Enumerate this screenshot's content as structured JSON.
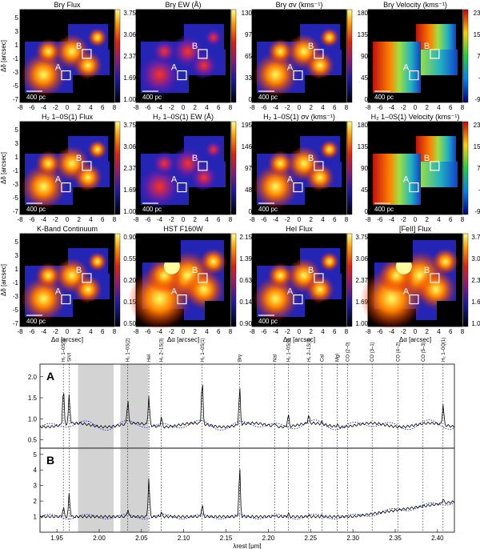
{
  "panels": [
    {
      "title": "Brγ Flux",
      "cmap": "heat",
      "cbar": [
        "3.75",
        "3.06",
        "2.37",
        "1.69",
        "1.00"
      ],
      "scale": "400 pc"
    },
    {
      "title": "Brγ EW (Å)",
      "cmap": "heat",
      "cbar": [
        "130",
        "97",
        "65",
        "33",
        "0"
      ],
      "scale": "400 pc"
    },
    {
      "title": "Brγ σv (kms⁻¹)",
      "cmap": "heat",
      "cbar": [
        "180",
        "135",
        "90",
        "45",
        "0"
      ],
      "scale": "400 pc"
    },
    {
      "title": "Brγ Velocity (kms⁻¹)",
      "cmap": "vel",
      "cbar": [
        "230",
        "150",
        "70",
        "-9",
        "-90"
      ],
      "scale": "400 pc"
    },
    {
      "title": "H₂ 1–0S(1) Flux",
      "cmap": "heat",
      "cbar": [
        "3.75",
        "3.06",
        "2.37",
        "1.69",
        "1.00"
      ],
      "scale": "400 pc"
    },
    {
      "title": "H₂ 1–0S(1) EW (Å)",
      "cmap": "heat",
      "cbar": [
        "195",
        "146",
        "97",
        "48",
        "0"
      ],
      "scale": "400 pc"
    },
    {
      "title": "H₂ 1–0S(1) σv (kms⁻¹)",
      "cmap": "heat",
      "cbar": [
        "180",
        "135",
        "90",
        "45",
        "0"
      ],
      "scale": "400 pc"
    },
    {
      "title": "H₂ 1–0S(1) Velocity (kms⁻¹)",
      "cmap": "vel",
      "cbar": [
        "230",
        "150",
        "70",
        "-9",
        "-90"
      ],
      "scale": "400 pc"
    },
    {
      "title": "K-Band Continuum",
      "cmap": "heat",
      "cbar": [
        "0.90",
        "0.55",
        "0.20",
        "0.15",
        "0.50"
      ],
      "scale": "400 pc"
    },
    {
      "title": "HST F160W",
      "cmap": "heat",
      "cbar": [
        "2.15",
        "1.39",
        "0.63",
        "0.14",
        "0.90"
      ],
      "scale": ""
    },
    {
      "title": "HeI Flux",
      "cmap": "heat",
      "cbar": [
        "3.75",
        "3.06",
        "2.37",
        "1.69",
        "1.00"
      ],
      "scale": "400 pc"
    },
    {
      "title": "[FeII] Flux",
      "cmap": "heat",
      "cbar": [
        "3.75",
        "3.06",
        "2.37",
        "1.69",
        "1.00"
      ],
      "scale": ""
    }
  ],
  "map_axes": {
    "xlabel": "Δα [arcsec]",
    "ylabel": "Δδ [arcsec]",
    "xticks": [
      "-8",
      "-6",
      "-4",
      "-2",
      "0",
      "2",
      "4",
      "6",
      "8"
    ],
    "yticks": [
      "5",
      "3",
      "1",
      "-1",
      "-3",
      "-5",
      "-7"
    ],
    "regions": [
      "A",
      "B"
    ]
  },
  "spectrum": {
    "xlabel": "λrest [μm]",
    "xticks": [
      "1.95",
      "2.00",
      "2.05",
      "2.10",
      "2.15",
      "2.20",
      "2.25",
      "2.30",
      "2.35",
      "2.40"
    ],
    "xlim": [
      1.93,
      2.42
    ],
    "panels": [
      {
        "label": "A",
        "yticks": [
          "2.0",
          "1.5",
          "1.0",
          "0.5"
        ],
        "ylim": [
          0.3,
          2.3
        ]
      },
      {
        "label": "B",
        "yticks": [
          "5",
          "4",
          "3",
          "2",
          "1"
        ],
        "ylim": [
          0,
          5.4
        ]
      }
    ],
    "shaded": [
      [
        1.975,
        2.017
      ],
      [
        2.025,
        2.058
      ]
    ],
    "lines": [
      {
        "name": "SiVI",
        "x": 1.9645
      },
      {
        "name": "H₂ 1–0S(3)",
        "x": 1.9576
      },
      {
        "name": "H₂ 1–0S(2)",
        "x": 2.0338
      },
      {
        "name": "HeI",
        "x": 2.0587
      },
      {
        "name": "H₂ 2–1S(3)",
        "x": 2.0735
      },
      {
        "name": "H₂ 1–0S(1)",
        "x": 2.1218
      },
      {
        "name": "Brγ",
        "x": 2.1661
      },
      {
        "name": "NaI",
        "x": 2.2076
      },
      {
        "name": "H₂ 1–0S(0)",
        "x": 2.2235
      },
      {
        "name": "H₂ 2–1S(1)",
        "x": 2.2477
      },
      {
        "name": "CaI",
        "x": 2.2636
      },
      {
        "name": "MgI",
        "x": 2.2814
      },
      {
        "name": "CO (2–0)",
        "x": 2.2935
      },
      {
        "name": "CO (3–1)",
        "x": 2.3227
      },
      {
        "name": "CO (4–2)",
        "x": 2.3535
      },
      {
        "name": "CO (5–3)",
        "x": 2.3829
      },
      {
        "name": "H₂ 1–0Q(1)",
        "x": 2.4066
      }
    ]
  },
  "colors": {
    "frame": "#000000",
    "spectrum": "#000000",
    "model": "#1f2fd6",
    "shade": "#d3d3d3",
    "box": "#ffffff"
  }
}
